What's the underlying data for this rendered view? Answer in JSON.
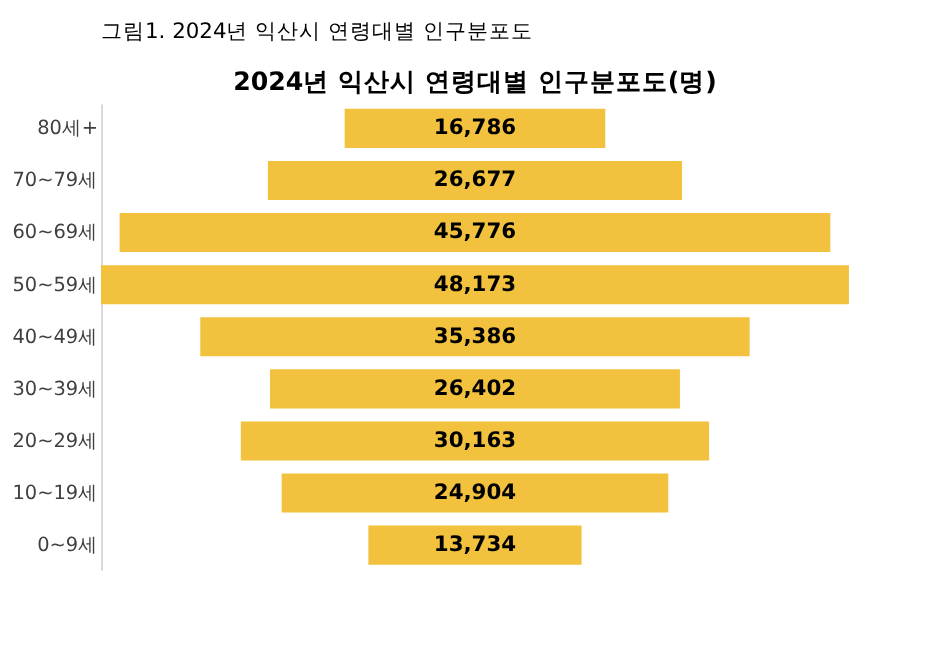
{
  "chart_data": {
    "type": "other",
    "title": "2024년 익산시 연령대별 인구분포도(명)",
    "annotations": [
      "그림1. 2024년 익산시 연령대별 인구분포도"
    ],
    "categories": [
      "80세+",
      "70~79세",
      "60~69세",
      "50~59세",
      "40~49세",
      "30~39세",
      "20~29세",
      "10~19세",
      "0~9세"
    ],
    "values": [
      16786,
      26677,
      45776,
      48173,
      35386,
      26402,
      30163,
      24904,
      13734
    ],
    "value_labels": [
      "16,786",
      "26,677",
      "45,776",
      "48,173",
      "35,386",
      "26,402",
      "30,163",
      "24,904",
      "13,734"
    ],
    "color": "#f2c13d"
  }
}
